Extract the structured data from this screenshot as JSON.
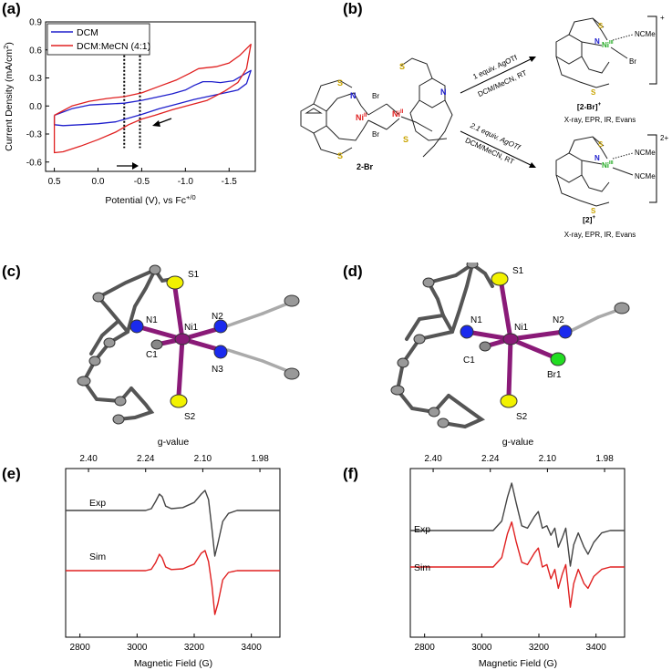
{
  "panels": {
    "a": {
      "label": "(a)"
    },
    "b": {
      "label": "(b)"
    },
    "c": {
      "label": "(c)"
    },
    "d": {
      "label": "(d)"
    },
    "e": {
      "label": "(e)"
    },
    "f": {
      "label": "(f)"
    }
  },
  "chart_data": [
    {
      "type": "line",
      "panel": "a",
      "xlabel": "Potential (V), vs Fc",
      "xlabel_sup": "+/0",
      "ylabel": "Current Density (mA/cm",
      "ylabel_sup": "2",
      "ylabel_end": ")",
      "xlim": [
        0.6,
        -1.8
      ],
      "ylim": [
        -0.7,
        0.9
      ],
      "x_reversed": true,
      "x_ticks": [
        "0.5",
        "0.0",
        "-0.5",
        "-1.0",
        "-1.5"
      ],
      "x_tick_values": [
        0.5,
        0.0,
        -0.5,
        -1.0,
        -1.5
      ],
      "y_ticks": [
        "-0.6",
        "-0.3",
        "0.0",
        "0.3",
        "0.6",
        "0.9"
      ],
      "y_tick_values": [
        -0.6,
        -0.3,
        0.0,
        0.3,
        0.6,
        0.9
      ],
      "legend_placement": "top-left",
      "vlines_dotted": [
        -0.3,
        -0.48
      ],
      "series": [
        {
          "name": "DCM",
          "color": "#1f1fcc",
          "upper": [
            [
              0.5,
              -0.1
            ],
            [
              0.3,
              -0.03
            ],
            [
              0.1,
              0.01
            ],
            [
              -0.1,
              0.02
            ],
            [
              -0.3,
              0.03
            ],
            [
              -0.5,
              0.06
            ],
            [
              -0.7,
              0.1
            ],
            [
              -0.85,
              0.13
            ],
            [
              -1.0,
              0.17
            ],
            [
              -1.1,
              0.22
            ],
            [
              -1.2,
              0.26
            ],
            [
              -1.3,
              0.26
            ],
            [
              -1.4,
              0.25
            ],
            [
              -1.55,
              0.27
            ],
            [
              -1.75,
              0.38
            ]
          ],
          "lower": [
            [
              -1.75,
              0.38
            ],
            [
              -1.7,
              0.24
            ],
            [
              -1.6,
              0.17
            ],
            [
              -1.5,
              0.15
            ],
            [
              -1.3,
              0.11
            ],
            [
              -1.1,
              0.07
            ],
            [
              -0.9,
              0.02
            ],
            [
              -0.7,
              -0.03
            ],
            [
              -0.5,
              -0.09
            ],
            [
              -0.35,
              -0.13
            ],
            [
              -0.2,
              -0.17
            ],
            [
              0.0,
              -0.19
            ],
            [
              0.2,
              -0.2
            ],
            [
              0.4,
              -0.21
            ],
            [
              0.5,
              -0.2
            ]
          ]
        },
        {
          "name": "DCM:MeCN (4:1)",
          "color": "#e02020",
          "upper": [
            [
              0.5,
              -0.1
            ],
            [
              0.3,
              0.0
            ],
            [
              0.1,
              0.05
            ],
            [
              -0.1,
              0.08
            ],
            [
              -0.3,
              0.1
            ],
            [
              -0.5,
              0.14
            ],
            [
              -0.7,
              0.21
            ],
            [
              -0.9,
              0.28
            ],
            [
              -1.05,
              0.35
            ],
            [
              -1.15,
              0.4
            ],
            [
              -1.25,
              0.41
            ],
            [
              -1.35,
              0.42
            ],
            [
              -1.5,
              0.46
            ],
            [
              -1.62,
              0.54
            ],
            [
              -1.75,
              0.66
            ]
          ],
          "lower": [
            [
              -1.75,
              0.66
            ],
            [
              -1.7,
              0.4
            ],
            [
              -1.6,
              0.25
            ],
            [
              -1.45,
              0.16
            ],
            [
              -1.25,
              0.06
            ],
            [
              -1.05,
              0.01
            ],
            [
              -0.85,
              -0.04
            ],
            [
              -0.65,
              -0.1
            ],
            [
              -0.5,
              -0.14
            ],
            [
              -0.35,
              -0.2
            ],
            [
              -0.2,
              -0.28
            ],
            [
              0.0,
              -0.36
            ],
            [
              0.2,
              -0.43
            ],
            [
              0.4,
              -0.49
            ],
            [
              0.5,
              -0.5
            ]
          ]
        }
      ]
    },
    {
      "type": "line",
      "panel": "e",
      "xlabel": "Magnetic Field (G)",
      "top_xlabel": "g-value",
      "xlim": [
        2750,
        3500
      ],
      "x_ticks": [
        "2800",
        "3000",
        "3200",
        "3400"
      ],
      "x_tick_values": [
        2800,
        3000,
        3200,
        3400
      ],
      "top_ticks": [
        "2.40",
        "2.24",
        "2.10",
        "1.98"
      ],
      "top_tick_fields": [
        2830,
        3030,
        3230,
        3430
      ],
      "series": [
        {
          "name": "Exp",
          "color": "#444444",
          "baseline": 0,
          "points": [
            [
              2750,
              0
            ],
            [
              3030,
              0
            ],
            [
              3050,
              0.05
            ],
            [
              3065,
              0.25
            ],
            [
              3078,
              0.45
            ],
            [
              3088,
              0.38
            ],
            [
              3100,
              0.12
            ],
            [
              3120,
              0.05
            ],
            [
              3160,
              0.08
            ],
            [
              3200,
              0.22
            ],
            [
              3225,
              0.45
            ],
            [
              3238,
              0.55
            ],
            [
              3250,
              0.3
            ],
            [
              3262,
              -0.5
            ],
            [
              3272,
              -1.25
            ],
            [
              3283,
              -0.9
            ],
            [
              3300,
              -0.3
            ],
            [
              3320,
              -0.08
            ],
            [
              3350,
              0
            ],
            [
              3500,
              0
            ]
          ]
        },
        {
          "name": "Sim",
          "color": "#e02020",
          "baseline": 0,
          "points": [
            [
              2750,
              0
            ],
            [
              3030,
              0
            ],
            [
              3050,
              0.04
            ],
            [
              3065,
              0.22
            ],
            [
              3078,
              0.45
            ],
            [
              3088,
              0.35
            ],
            [
              3100,
              0.1
            ],
            [
              3120,
              0.03
            ],
            [
              3160,
              0.05
            ],
            [
              3200,
              0.18
            ],
            [
              3225,
              0.48
            ],
            [
              3238,
              0.55
            ],
            [
              3250,
              0.25
            ],
            [
              3262,
              -0.4
            ],
            [
              3272,
              -1.2
            ],
            [
              3283,
              -0.9
            ],
            [
              3300,
              -0.25
            ],
            [
              3320,
              -0.05
            ],
            [
              3350,
              0
            ],
            [
              3500,
              0
            ]
          ]
        }
      ]
    },
    {
      "type": "line",
      "panel": "f",
      "xlabel": "Magnetic Field (G)",
      "top_xlabel": "g-value",
      "xlim": [
        2750,
        3500
      ],
      "x_ticks": [
        "2800",
        "3000",
        "3200",
        "3400"
      ],
      "x_tick_values": [
        2800,
        3000,
        3200,
        3400
      ],
      "top_ticks": [
        "2.40",
        "2.24",
        "2.10",
        "1.98"
      ],
      "top_tick_fields": [
        2830,
        3030,
        3230,
        3430
      ],
      "series": [
        {
          "name": "Exp",
          "color": "#444444",
          "baseline": 0,
          "points": [
            [
              2750,
              0
            ],
            [
              3040,
              0
            ],
            [
              3070,
              0.2
            ],
            [
              3090,
              0.7
            ],
            [
              3105,
              1.0
            ],
            [
              3120,
              0.6
            ],
            [
              3140,
              0.1
            ],
            [
              3160,
              0.05
            ],
            [
              3185,
              0.3
            ],
            [
              3198,
              0.4
            ],
            [
              3212,
              0.05
            ],
            [
              3228,
              0.1
            ],
            [
              3242,
              -0.1
            ],
            [
              3256,
              0.05
            ],
            [
              3268,
              -0.35
            ],
            [
              3282,
              -0.15
            ],
            [
              3294,
              0.05
            ],
            [
              3310,
              -0.75
            ],
            [
              3322,
              -0.3
            ],
            [
              3338,
              -0.05
            ],
            [
              3358,
              -0.35
            ],
            [
              3372,
              -0.5
            ],
            [
              3392,
              -0.25
            ],
            [
              3420,
              -0.05
            ],
            [
              3450,
              0
            ],
            [
              3500,
              0
            ]
          ]
        },
        {
          "name": "Sim",
          "color": "#e02020",
          "baseline": 0,
          "points": [
            [
              2750,
              0
            ],
            [
              3040,
              0
            ],
            [
              3070,
              0.2
            ],
            [
              3090,
              0.7
            ],
            [
              3105,
              0.95
            ],
            [
              3120,
              0.55
            ],
            [
              3140,
              0.1
            ],
            [
              3160,
              0.05
            ],
            [
              3185,
              0.3
            ],
            [
              3198,
              0.4
            ],
            [
              3212,
              0.0
            ],
            [
              3228,
              0.05
            ],
            [
              3242,
              -0.25
            ],
            [
              3256,
              -0.05
            ],
            [
              3268,
              -0.45
            ],
            [
              3282,
              -0.15
            ],
            [
              3294,
              0.05
            ],
            [
              3310,
              -0.85
            ],
            [
              3322,
              -0.35
            ],
            [
              3338,
              -0.05
            ],
            [
              3358,
              -0.35
            ],
            [
              3372,
              -0.45
            ],
            [
              3392,
              -0.2
            ],
            [
              3420,
              -0.05
            ],
            [
              3450,
              0
            ],
            [
              3500,
              0
            ]
          ]
        }
      ]
    }
  ],
  "scheme_b": {
    "reactant_label": "2-Br",
    "reactant_ni_label": "Ni",
    "reactant_ni_ox": "II",
    "br_label": "Br",
    "n_label": "N",
    "s_label": "S",
    "top_reagent": "1 equiv. AgOTf",
    "top_conditions": "DCM/MeCN, RT",
    "bottom_reagent": "2.1 equiv. AgOTf",
    "bottom_conditions": "DCM/MeCN, RT",
    "product_top_label": "[2-Br]",
    "product_top_charge": "+",
    "product_top_ni_ox": "III",
    "product_top_methods": "X-ray, EPR, IR, Evans",
    "product_top_charge_bracket": "+",
    "product_bottom_label": "[2]",
    "product_bottom_charge": "+",
    "product_bottom_ni_ox": "III",
    "product_bottom_methods": "X-ray, EPR, IR, Evans",
    "product_bottom_charge_bracket": "2+",
    "ncme_label": "NCMe"
  },
  "structure_c": {
    "labels": [
      "S1",
      "N1",
      "Ni1",
      "N2",
      "N3",
      "C1",
      "S2"
    ]
  },
  "structure_d": {
    "labels": [
      "S1",
      "N1",
      "Ni1",
      "N2",
      "C1",
      "Br1",
      "S2"
    ]
  }
}
